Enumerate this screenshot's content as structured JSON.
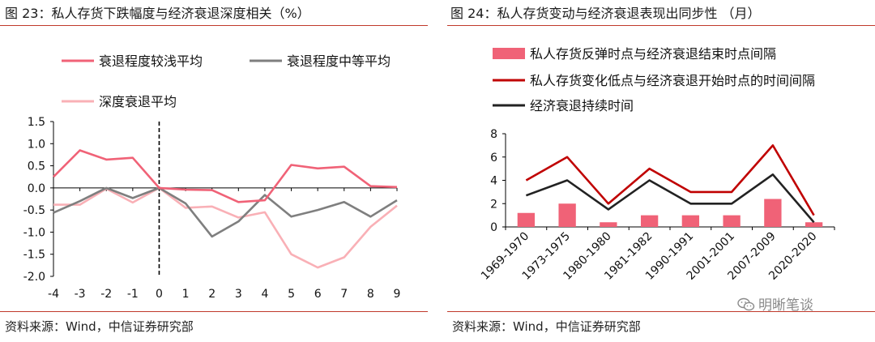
{
  "left": {
    "title": "图 23：私人存货下跌幅度与经济衰退深度相关（%）",
    "source": "资料来源：Wind，中信证券研究部"
  },
  "right": {
    "title": "图 24：私人存货变动与经济衰退表现出同步性 （月）",
    "source": "资料来源：Wind，中信证券研究部"
  },
  "watermark": {
    "text": "明晰笔谈",
    "icon": "wechat-icon"
  },
  "colors": {
    "accent_rule": "#c0392b"
  },
  "chart_data": [
    {
      "type": "line",
      "x": [
        -4,
        -3,
        -2,
        -1,
        0,
        1,
        2,
        3,
        4,
        5,
        6,
        7,
        8,
        9
      ],
      "xlim": [
        -4,
        9
      ],
      "ylim": [
        -2.0,
        1.5
      ],
      "yticks": [
        1.5,
        1.0,
        0.5,
        0.0,
        -0.5,
        -1.0,
        -1.5,
        -2.0
      ],
      "ytick_labels": [
        "1.5",
        "1.0",
        "0.5",
        "0.0",
        "-0.5",
        "-1.0",
        "-1.5",
        "-2.0"
      ],
      "xtick_labels": [
        "-4",
        "-3",
        "-2",
        "-1",
        "0",
        "1",
        "2",
        "3",
        "4",
        "5",
        "6",
        "7",
        "8",
        "9"
      ],
      "vline_x": 0,
      "legend_placement": "top",
      "series": [
        {
          "name": "衰退程度较浅平均",
          "color": "#f06277",
          "values": [
            0.25,
            0.85,
            0.64,
            0.68,
            0.0,
            -0.04,
            -0.05,
            -0.32,
            -0.28,
            0.52,
            0.44,
            0.48,
            0.04,
            0.02
          ]
        },
        {
          "name": "衰退程度中等平均",
          "color": "#7f7f7f",
          "values": [
            -0.56,
            -0.3,
            0.0,
            -0.23,
            0.0,
            -0.35,
            -1.1,
            -0.76,
            -0.16,
            -0.65,
            -0.5,
            -0.32,
            -0.65,
            -0.28
          ]
        },
        {
          "name": "深度衰退平均",
          "color": "#f9b0b6",
          "values": [
            -0.38,
            -0.38,
            -0.02,
            -0.33,
            0.0,
            -0.45,
            -0.42,
            -0.67,
            -0.55,
            -1.5,
            -1.8,
            -1.57,
            -0.88,
            -0.4
          ]
        }
      ]
    },
    {
      "type": "bar",
      "categories": [
        "1969-1970",
        "1973-1975",
        "1980-1980",
        "1981-1982",
        "1990-1991",
        "2001-2001",
        "2007-2009",
        "2020-2020"
      ],
      "ylim": [
        0,
        8
      ],
      "yticks": [
        0,
        2,
        4,
        6,
        8
      ],
      "ytick_labels": [
        "0",
        "2",
        "4",
        "6",
        "8"
      ],
      "legend_placement": "top",
      "series": [
        {
          "name": "私人存货反弹时点与经济衰退结束时点间隔",
          "kind": "bar",
          "color": "#f06277",
          "values": [
            1.2,
            2.0,
            0.4,
            1.0,
            1.0,
            1.0,
            2.4,
            0.4
          ]
        },
        {
          "name": "私人存货变化低点与经济衰退开始时点的时间间隔",
          "kind": "line",
          "color": "#c00000",
          "values": [
            4,
            6,
            2,
            5,
            3,
            3,
            7,
            1
          ]
        },
        {
          "name": "经济衰退持续时间",
          "kind": "line",
          "color": "#222222",
          "values": [
            2.7,
            4,
            1.5,
            4,
            2,
            2,
            4.5,
            0.4
          ]
        }
      ]
    }
  ]
}
